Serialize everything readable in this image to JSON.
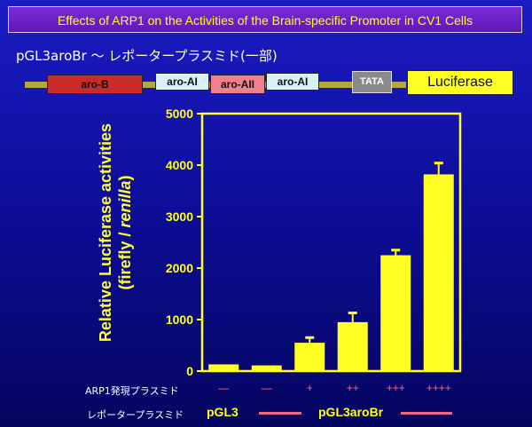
{
  "header": {
    "title": "Effects of ARP1 on the Activities of the Brain-specific Promoter in CV1 Cells"
  },
  "construct": {
    "label": "pGL3aroBr 〜 レポータープラスミド(一部)",
    "elements": [
      "aro-B",
      "aro-AI",
      "aro-AII",
      "aro-AI",
      "TATA",
      "Luciferase"
    ]
  },
  "colors": {
    "bar": "#ffff22",
    "axis": "#ffff22",
    "title_bg": "#6a22cc",
    "title_text": "#ffff22",
    "condition_text": "#ff6677",
    "bracket_line": "#ee6688"
  },
  "chart_data": {
    "type": "bar",
    "title": "",
    "ylabel_line1": "Relative Luciferase activities",
    "ylabel_line2_a": "(firefly / ",
    "ylabel_line2_b": "renilla",
    "ylabel_line2_c": ")",
    "ylim": [
      0,
      5000
    ],
    "yticks": [
      "0",
      "1000",
      "2000",
      "3000",
      "4000",
      "5000"
    ],
    "ytick_values": [
      0,
      1000,
      2000,
      3000,
      4000,
      5000
    ],
    "values": [
      130,
      110,
      550,
      950,
      2250,
      3820
    ],
    "errors": [
      0,
      0,
      100,
      180,
      100,
      220
    ],
    "grid": false
  },
  "rows": {
    "arp1_label": "ARP1発現プラスミド",
    "arp1_values": [
      "—",
      "—",
      "+",
      "++",
      "+++",
      "++++"
    ],
    "reporter_label": "レポータープラスミド",
    "reporter_pgl3": "pGL3",
    "reporter_pgl3arobr": "pGL3aroBr"
  }
}
